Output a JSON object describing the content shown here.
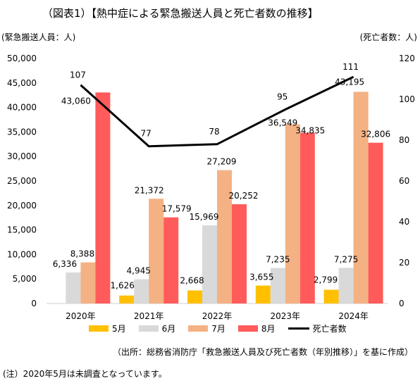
{
  "title": "（図表1）【熱中症による緊急搬送人員と死亡者数の推移】",
  "left_unit": "(緊急搬送人員：人)",
  "right_unit": "(死亡者数：人)",
  "source": "（出所：総務省消防庁「救急搬送人員及び死亡者数（年別推移）」を基に作成）",
  "note": "(注）2020年5月は未調査となっています。",
  "colors": {
    "may": "#FFC000",
    "june": "#D9D9D9",
    "july": "#F4B183",
    "august": "#FF5B5B",
    "deaths": "#000000"
  },
  "chart_data": {
    "type": "bar",
    "categories": [
      "2020年",
      "2021年",
      "2022年",
      "2023年",
      "2024年"
    ],
    "series": [
      {
        "name": "5月",
        "values": [
          null,
          1626,
          2668,
          3655,
          2799
        ],
        "labels": [
          "",
          "1,626",
          "2,668",
          "3,655",
          "2,799"
        ]
      },
      {
        "name": "6月",
        "values": [
          6336,
          4945,
          15969,
          7235,
          7275
        ],
        "labels": [
          "6,336",
          "4,945",
          "15,969",
          "7,235",
          "7,275"
        ]
      },
      {
        "name": "7月",
        "values": [
          8388,
          21372,
          27209,
          36549,
          43195
        ],
        "labels": [
          "8,388",
          "21,372",
          "27,209",
          "36,549",
          "43,195"
        ]
      },
      {
        "name": "8月",
        "values": [
          43060,
          17579,
          20252,
          34835,
          32806
        ],
        "labels": [
          "43,060",
          "17,579",
          "20,252",
          "34,835",
          "32,806"
        ]
      }
    ],
    "line_series": {
      "name": "死亡者数",
      "type": "line",
      "axis": "right",
      "values": [
        107,
        77,
        78,
        95,
        111
      ],
      "labels": [
        "107",
        "77",
        "78",
        "95",
        "111"
      ]
    },
    "ylim": [
      0,
      50000
    ],
    "y_ticks": [
      "0",
      "5,000",
      "10,000",
      "15,000",
      "20,000",
      "25,000",
      "30,000",
      "35,000",
      "40,000",
      "45,000",
      "50,000"
    ],
    "y2lim": [
      0,
      120
    ],
    "y2_ticks": [
      "0",
      "20",
      "40",
      "60",
      "80",
      "100",
      "120"
    ],
    "grid": false,
    "legend_position": "bottom"
  }
}
